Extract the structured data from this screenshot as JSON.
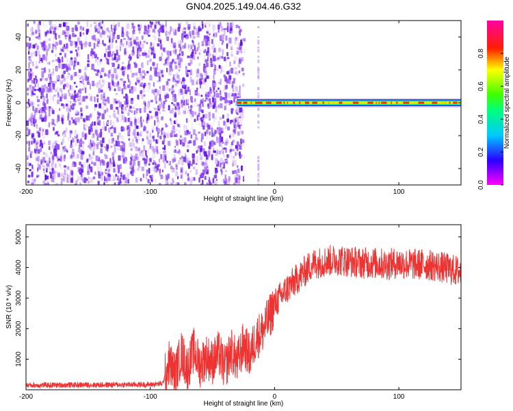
{
  "title": "GN04.2025.149.04.46.G32",
  "chart_data": [
    {
      "type": "heatmap",
      "xlabel": "Height of straight line (km)",
      "ylabel": "Frequency (Hz)",
      "xlim": [
        -200,
        150
      ],
      "ylim": [
        -50,
        50
      ],
      "xticks": [
        -200,
        -100,
        0,
        100
      ],
      "yticks": [
        -40,
        -20,
        0,
        20,
        40
      ],
      "grid": false,
      "colorbar": {
        "label": "Normalized spectral amplitude",
        "range": [
          0,
          1
        ],
        "ticks": [
          "0.0",
          "0.2",
          "0.4",
          "0.6",
          "0.8"
        ],
        "colormap": "rainbow (magenta-blue-cyan-green-yellow-red-magenta)"
      },
      "features": {
        "noise_region_x": [
          -200,
          -25
        ],
        "isolated_column_x": -13,
        "carrier_line": {
          "x": [
            -30,
            150
          ],
          "frequency": 0,
          "amplitude": 1.0
        }
      }
    },
    {
      "type": "line",
      "xlabel": "Height of straight line (km)",
      "ylabel": "SNR (10 * v/v)",
      "xlim": [
        -200,
        150
      ],
      "ylim": [
        0,
        5400
      ],
      "xticks": [
        -200,
        -100,
        0,
        100
      ],
      "yticks": [
        1000,
        2000,
        3000,
        4000,
        5000
      ],
      "grid": false,
      "series": [
        {
          "color": "#ee3333",
          "x": [
            -200,
            -150,
            -100,
            -90,
            -85,
            -80,
            -75,
            -70,
            -65,
            -60,
            -55,
            -50,
            -45,
            -40,
            -35,
            -30,
            -25,
            -20,
            -15,
            -10,
            -5,
            0,
            10,
            20,
            30,
            40,
            50,
            60,
            70,
            80,
            90,
            100,
            110,
            120,
            130,
            140,
            150
          ],
          "y": [
            150,
            160,
            170,
            200,
            900,
            500,
            1200,
            700,
            1300,
            800,
            1100,
            900,
            1200,
            700,
            1300,
            900,
            1500,
            1100,
            1700,
            1900,
            2300,
            2800,
            3300,
            3700,
            4100,
            4200,
            4250,
            4200,
            4150,
            4150,
            4100,
            4150,
            4100,
            4100,
            4050,
            3950,
            3850
          ]
        }
      ]
    }
  ]
}
